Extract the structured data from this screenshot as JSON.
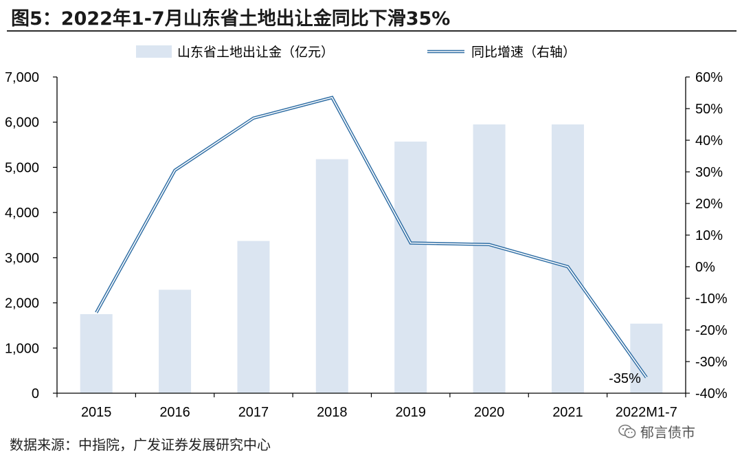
{
  "header": {
    "title": "图5：2022年1-7月山东省土地出让金同比下滑35%"
  },
  "footer": {
    "source": "数据来源：中指院，广发证券发展研究中心",
    "watermark": "郁言债市",
    "watermark_icon": "wechat-icon"
  },
  "colors": {
    "bar": "#dbe5f1",
    "line": "#2e6da4",
    "line_inner": "#ffffff",
    "axis": "#000000",
    "title_rule": "#2b2b2b"
  },
  "chart_data": {
    "type": "bar+line",
    "title": "2022年1-7月山东省土地出让金同比下滑35%",
    "categories": [
      "2015",
      "2016",
      "2017",
      "2018",
      "2019",
      "2020",
      "2021",
      "2022M1-7"
    ],
    "series": [
      {
        "name": "山东省土地出让金（亿元）",
        "type": "bar",
        "axis": "left",
        "values": [
          1750,
          2290,
          3370,
          5180,
          5570,
          5950,
          5950,
          1540
        ]
      },
      {
        "name": "同比增速（右轴）",
        "type": "line",
        "axis": "right",
        "values": [
          -14.5,
          30.5,
          47.0,
          53.5,
          7.5,
          7.0,
          0.0,
          -35.0
        ]
      }
    ],
    "y_left": {
      "range": [
        0,
        7000
      ],
      "ticks": [
        0,
        1000,
        2000,
        3000,
        4000,
        5000,
        6000,
        7000
      ],
      "tick_labels": [
        "0",
        "1,000",
        "2,000",
        "3,000",
        "4,000",
        "5,000",
        "6,000",
        "7,000"
      ]
    },
    "y_right": {
      "range": [
        -40,
        60
      ],
      "ticks": [
        -40,
        -30,
        -20,
        -10,
        0,
        10,
        20,
        30,
        40,
        50,
        60
      ],
      "tick_labels": [
        "-40%",
        "-30%",
        "-20%",
        "-10%",
        "0%",
        "10%",
        "20%",
        "30%",
        "40%",
        "50%",
        "60%"
      ]
    },
    "annotations": [
      {
        "text": "-35%",
        "category": "2022M1-7",
        "series": "同比增速（右轴）"
      }
    ],
    "legend": {
      "position": "top-center",
      "entries": [
        "山东省土地出让金（亿元）",
        "同比增速（右轴）"
      ]
    },
    "grid": false
  }
}
